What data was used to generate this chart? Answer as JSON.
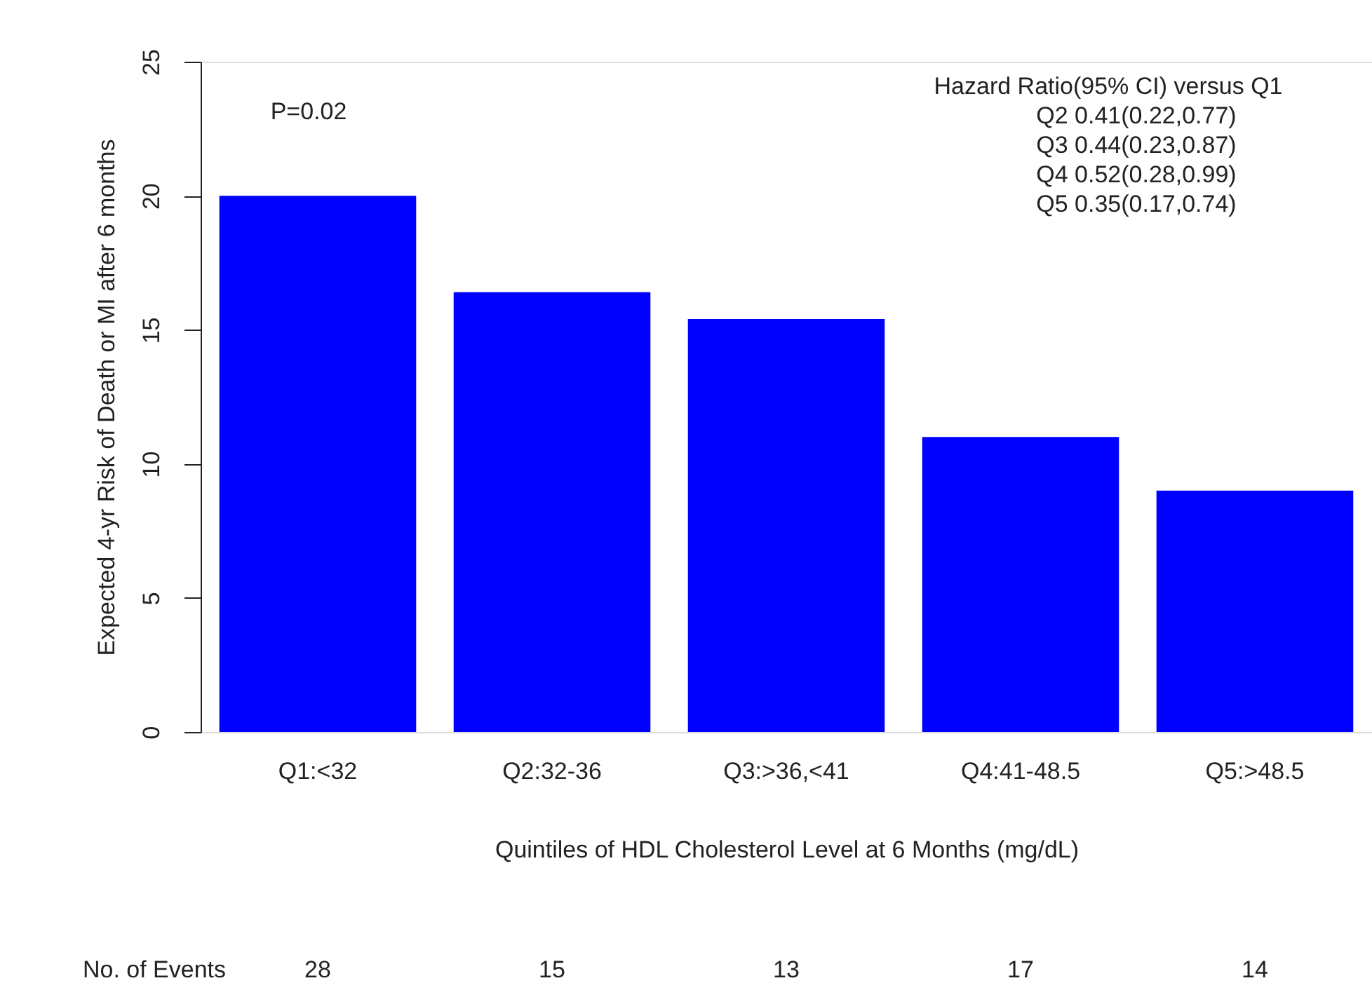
{
  "chart_data": {
    "type": "bar",
    "xlabel": "Quintiles of HDL Cholesterol Level at 6 Months (mg/dL)",
    "ylabel": "Expected 4-yr Risk of Death or MI after 6 months",
    "categories": [
      "Q1:<32",
      "Q2:32-36",
      "Q3:>36,<41",
      "Q4:41-48.5",
      "Q5:>48.5"
    ],
    "values": [
      20,
      16.4,
      15.4,
      11,
      9
    ],
    "color": "#0000ff",
    "ylim": [
      0,
      25
    ],
    "yticks": [
      0,
      5,
      10,
      15,
      20,
      25
    ],
    "grid": false,
    "annotations": [
      "P=0.02",
      "Hazard Ratio(95% CI) versus Q1",
      "Q2    0.41(0.22,0.77)",
      "Q3    0.44(0.23,0.87)",
      "Q4    0.52(0.28,0.99)",
      "Q5    0.35(0.17,0.74)",
      "No. of Events",
      "28",
      "15",
      "13",
      "17",
      "14"
    ]
  }
}
